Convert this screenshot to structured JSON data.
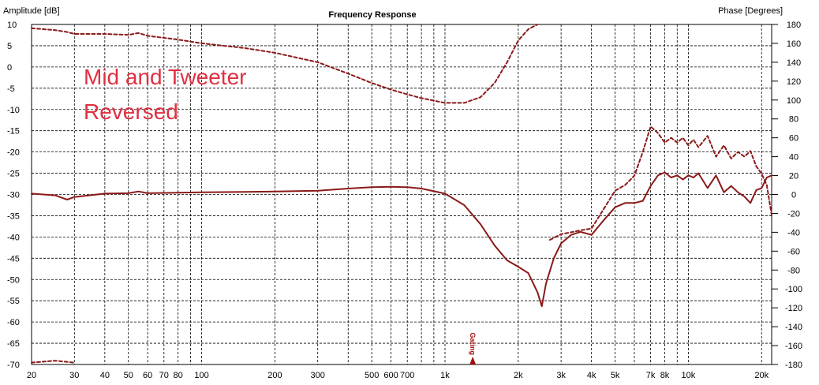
{
  "chart_data": {
    "type": "line",
    "title": "Frequency Response",
    "left_axis_label": "Amplitude [dB]",
    "right_axis_label": "Phase [Degrees]",
    "x_scale": "log",
    "xlim": [
      20,
      22000
    ],
    "ylim_left": [
      -70,
      10
    ],
    "ylim_right": [
      -180,
      180
    ],
    "grid": true,
    "x_ticks": [
      {
        "v": 20,
        "label": "20"
      },
      {
        "v": 30,
        "label": "30"
      },
      {
        "v": 40,
        "label": "40"
      },
      {
        "v": 50,
        "label": "50"
      },
      {
        "v": 60,
        "label": "60"
      },
      {
        "v": 70,
        "label": "70"
      },
      {
        "v": 80,
        "label": "80"
      },
      {
        "v": 100,
        "label": "100"
      },
      {
        "v": 200,
        "label": "200"
      },
      {
        "v": 300,
        "label": "300"
      },
      {
        "v": 500,
        "label": "500"
      },
      {
        "v": 600,
        "label": "600"
      },
      {
        "v": 700,
        "label": "700"
      },
      {
        "v": 1000,
        "label": "1k"
      },
      {
        "v": 2000,
        "label": "2k"
      },
      {
        "v": 3000,
        "label": "3k"
      },
      {
        "v": 4000,
        "label": "4k"
      },
      {
        "v": 5000,
        "label": "5k"
      },
      {
        "v": 7000,
        "label": "7k"
      },
      {
        "v": 8000,
        "label": "8k"
      },
      {
        "v": 10000,
        "label": "10k"
      },
      {
        "v": 20000,
        "label": "20k"
      }
    ],
    "y_ticks_left": [
      10,
      5,
      0,
      -5,
      -10,
      -15,
      -20,
      -25,
      -30,
      -35,
      -40,
      -45,
      -50,
      -55,
      -60,
      -65,
      -70
    ],
    "y_ticks_right": [
      180,
      160,
      140,
      120,
      100,
      80,
      60,
      40,
      20,
      0,
      -20,
      -40,
      -60,
      -80,
      -100,
      -120,
      -140,
      -160,
      -180
    ],
    "annotation": [
      "Mid and Tweeter",
      "Reversed"
    ],
    "gating_marker": {
      "x": 1300,
      "label": "Gating"
    },
    "series": [
      {
        "axis": "left",
        "style": "solid",
        "color": "#8b1a1a",
        "x": [
          20,
          25,
          28,
          30,
          40,
          50,
          55,
          60,
          80,
          100,
          150,
          200,
          300,
          400,
          500,
          600,
          700,
          800,
          1000,
          1200,
          1400,
          1600,
          1800,
          2000,
          2200,
          2400,
          2500,
          2600,
          2800,
          3000,
          3300,
          3600,
          4000,
          4500,
          5000,
          5500,
          6000,
          6500,
          7000,
          7500,
          8000,
          8500,
          9000,
          9500,
          10000,
          10500,
          11000,
          12000,
          13000,
          14000,
          15000,
          16000,
          17000,
          18000,
          19000,
          20000,
          21000,
          22000
        ],
        "y": [
          -29.8,
          -30.2,
          -31.2,
          -30.6,
          -29.8,
          -29.7,
          -29.3,
          -29.7,
          -29.6,
          -29.5,
          -29.4,
          -29.3,
          -29.1,
          -28.6,
          -28.3,
          -28.2,
          -28.3,
          -28.6,
          -29.8,
          -32.5,
          -37.0,
          -42.0,
          -45.5,
          -47.0,
          -48.5,
          -53.0,
          -56.3,
          -51.0,
          -45.0,
          -41.5,
          -39.5,
          -38.8,
          -39.5,
          -36.0,
          -33.0,
          -32.0,
          -32.0,
          -31.5,
          -28.0,
          -25.5,
          -24.8,
          -26.0,
          -25.5,
          -26.5,
          -25.5,
          -26.0,
          -25.0,
          -28.5,
          -25.5,
          -29.5,
          -28.0,
          -29.5,
          -30.5,
          -32.0,
          -29.0,
          -28.5,
          -26.0,
          -25.5
        ]
      },
      {
        "axis": "right",
        "style": "dashed",
        "color": "#8b1a1a",
        "x": [
          20,
          25,
          28,
          30,
          40,
          50,
          55,
          60,
          80,
          100,
          150,
          200,
          300,
          400,
          500,
          600,
          700,
          800,
          1000,
          1200,
          1400,
          1600,
          1800,
          2000,
          2200,
          2400
        ],
        "y": [
          176,
          174,
          172,
          170,
          170,
          169,
          171,
          168,
          164,
          160,
          155,
          150,
          140,
          128,
          118,
          111,
          106,
          102,
          97,
          97,
          103,
          118,
          140,
          163,
          175,
          180
        ]
      },
      {
        "axis": "right",
        "style": "dashed",
        "color": "#8b1a1a",
        "x": [
          2700,
          3000,
          3300,
          3600,
          4000,
          4500,
          5000,
          5500,
          6000,
          6500,
          7000,
          7500,
          8000,
          8500,
          9000,
          9500,
          10000,
          10500,
          11000,
          12000,
          13000,
          14000,
          15000,
          16000,
          17000,
          18000,
          19000,
          20000,
          21000,
          22000
        ],
        "y": [
          -48,
          -42,
          -40,
          -38,
          -36,
          -15,
          4,
          10,
          20,
          45,
          72,
          65,
          55,
          60,
          55,
          60,
          52,
          58,
          50,
          62,
          40,
          52,
          38,
          45,
          40,
          46,
          30,
          22,
          10,
          -22
        ]
      },
      {
        "axis": "right",
        "style": "dashed",
        "color": "#8b1a1a",
        "x": [
          20,
          25,
          30
        ],
        "y": [
          -178,
          -176,
          -178
        ]
      }
    ]
  }
}
